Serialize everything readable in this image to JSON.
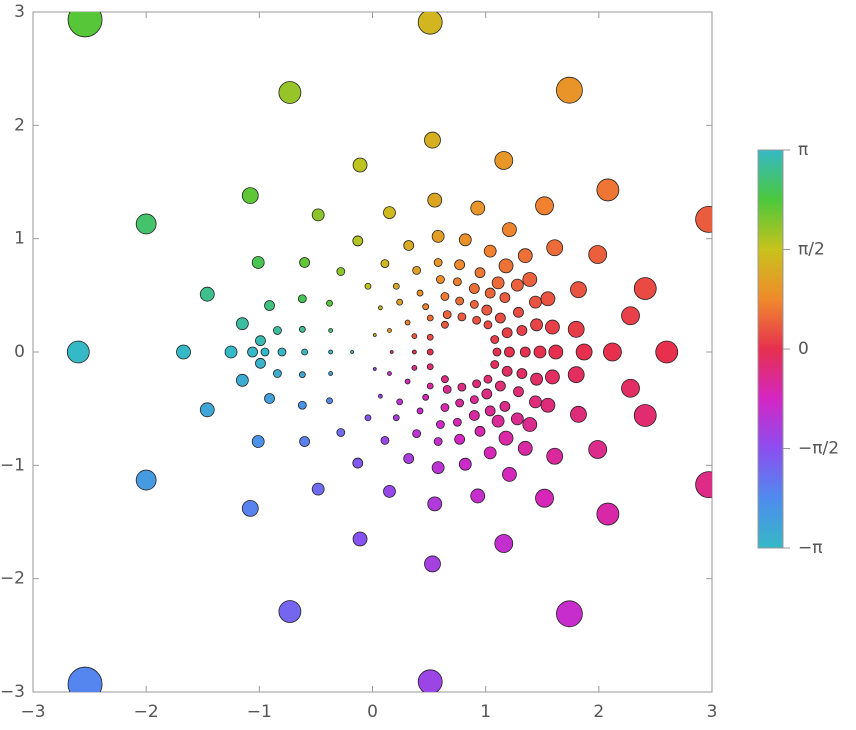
{
  "chart_data": {
    "type": "scatter",
    "x": [
      -2.54,
      0.51,
      1.74,
      -0.73,
      2.97,
      2.08,
      2.41,
      -2.0,
      -0.11,
      0.53,
      1.16,
      1.52,
      1.99,
      2.28,
      -1.08,
      -1.46,
      -0.48,
      0.15,
      0.55,
      0.93,
      1.21,
      1.35,
      1.61,
      1.82,
      1.8,
      -1.01,
      -0.6,
      -1.15,
      -0.91,
      -0.99,
      -0.84,
      -0.62,
      -0.62,
      -0.28,
      -0.13,
      0.11,
      0.32,
      0.58,
      0.82,
      1.04,
      1.18,
      1.39,
      1.55,
      1.59,
      -0.38,
      -0.37,
      -0.04,
      0.21,
      0.39,
      0.58,
      0.77,
      0.95,
      1.11,
      1.28,
      1.44,
      1.45,
      0.6,
      0.75,
      0.9,
      1.04,
      1.17,
      1.29,
      1.32,
      0.07,
      0.24,
      0.42,
      0.47,
      0.64,
      0.77,
      0.9,
      1.01,
      1.13,
      1.19,
      0.02,
      0.15,
      0.31,
      0.51,
      0.66,
      0.79,
      0.92,
      1.02,
      1.08,
      0.37,
      0.51,
      0.64,
      -2.54,
      0.51,
      1.74,
      -0.73,
      2.97,
      2.08,
      2.41,
      -2.0,
      -0.11,
      0.53,
      1.16,
      1.52,
      1.99,
      2.28,
      -1.08,
      -1.46,
      -0.48,
      0.15,
      0.55,
      0.93,
      1.21,
      1.35,
      1.61,
      1.82,
      1.8,
      -1.01,
      -0.6,
      -1.15,
      -0.91,
      -0.99,
      -0.84,
      -0.62,
      -0.62,
      -0.28,
      -0.13,
      0.11,
      0.32,
      0.58,
      0.82,
      1.04,
      1.18,
      1.39,
      1.55,
      1.59,
      -0.38,
      -0.37,
      -0.04,
      0.21,
      0.39,
      0.58,
      0.77,
      0.95,
      1.11,
      1.28,
      1.44,
      1.45,
      0.6,
      0.75,
      0.9,
      1.04,
      1.17,
      1.29,
      1.32,
      0.07,
      0.24,
      0.42,
      0.47,
      0.64,
      0.77,
      0.9,
      1.01,
      1.13,
      1.19,
      0.02,
      0.15,
      0.31,
      0.51,
      0.66,
      0.79,
      0.92,
      1.02,
      1.08,
      0.37,
      0.51,
      0.64,
      2.6,
      -2.6,
      2.12,
      1.87,
      -1.67,
      1.62,
      -1.25,
      1.48,
      -1.06,
      -0.95,
      -0.8,
      1.35,
      1.21,
      1.1,
      -0.6,
      -0.37,
      -0.18,
      0.51,
      0.37,
      0.17
    ],
    "y": [
      2.93,
      2.91,
      2.31,
      2.29,
      1.17,
      1.43,
      0.56,
      1.13,
      1.65,
      1.87,
      1.69,
      1.29,
      0.86,
      0.32,
      1.38,
      0.51,
      1.21,
      1.23,
      1.34,
      1.27,
      1.08,
      0.85,
      0.92,
      0.55,
      0.2,
      0.79,
      0.79,
      0.25,
      0.41,
      0.1,
      0.19,
      0.47,
      0.2,
      0.71,
      0.98,
      0.78,
      0.94,
      1.02,
      0.99,
      0.89,
      0.76,
      0.64,
      0.47,
      0.22,
      0.43,
      0.19,
      0.58,
      0.58,
      0.72,
      0.79,
      0.77,
      0.7,
      0.61,
      0.59,
      0.44,
      0.24,
      0.64,
      0.62,
      0.56,
      0.52,
      0.48,
      0.35,
      0.19,
      0.39,
      0.44,
      0.52,
      0.4,
      0.49,
      0.45,
      0.42,
      0.37,
      0.3,
      0.17,
      0.15,
      0.19,
      0.26,
      0.3,
      0.33,
      0.31,
      0.28,
      0.24,
      0.11,
      0.14,
      0.13,
      0.24,
      -2.93,
      -2.91,
      -2.31,
      -2.29,
      -1.17,
      -1.43,
      -0.56,
      -1.13,
      -1.65,
      -1.87,
      -1.69,
      -1.29,
      -0.86,
      -0.32,
      -1.38,
      -0.51,
      -1.21,
      -1.23,
      -1.34,
      -1.27,
      -1.08,
      -0.85,
      -0.92,
      -0.55,
      -0.2,
      -0.79,
      -0.79,
      -0.25,
      -0.41,
      -0.1,
      -0.19,
      -0.47,
      -0.2,
      -0.71,
      -0.98,
      -0.78,
      -0.94,
      -1.02,
      -0.99,
      -0.89,
      -0.76,
      -0.64,
      -0.47,
      -0.22,
      -0.43,
      -0.19,
      -0.58,
      -0.58,
      -0.72,
      -0.79,
      -0.77,
      -0.7,
      -0.61,
      -0.59,
      -0.44,
      -0.24,
      -0.64,
      -0.62,
      -0.56,
      -0.52,
      -0.48,
      -0.35,
      -0.19,
      -0.39,
      -0.44,
      -0.52,
      -0.4,
      -0.49,
      -0.45,
      -0.42,
      -0.37,
      -0.3,
      -0.17,
      -0.15,
      -0.19,
      -0.26,
      -0.3,
      -0.33,
      -0.31,
      -0.28,
      -0.24,
      -0.11,
      -0.14,
      -0.13,
      -0.24,
      0,
      0,
      0,
      0,
      0,
      0,
      0,
      0,
      0,
      0,
      0,
      0,
      0,
      0,
      0,
      0,
      0,
      0,
      0,
      0
    ],
    "sizes": [
      17,
      12,
      13,
      11,
      13,
      11,
      11,
      10,
      7,
      8,
      9,
      9,
      9,
      9,
      8,
      7,
      6,
      6,
      7,
      7,
      7,
      7,
      8,
      8,
      8,
      6,
      5,
      6,
      5,
      5,
      4,
      4,
      3,
      4,
      5,
      4,
      5,
      6,
      6,
      6,
      7,
      7,
      7,
      7,
      3,
      2,
      3,
      3,
      4,
      4,
      5,
      5,
      6,
      6,
      6,
      6,
      4,
      4,
      5,
      5,
      5,
      5,
      5,
      2,
      3,
      3,
      3,
      4,
      4,
      4,
      5,
      5,
      5,
      1.5,
      2,
      2.5,
      3,
      4,
      4,
      4,
      4,
      4,
      2.5,
      3,
      3.5,
      17,
      12,
      13,
      11,
      13,
      11,
      11,
      10,
      7,
      8,
      9,
      9,
      9,
      9,
      8,
      7,
      6,
      6,
      7,
      7,
      7,
      7,
      8,
      8,
      8,
      6,
      5,
      6,
      5,
      5,
      4,
      4,
      3,
      4,
      5,
      4,
      5,
      6,
      6,
      6,
      7,
      7,
      7,
      7,
      3,
      2,
      3,
      3,
      4,
      4,
      5,
      5,
      6,
      6,
      6,
      6,
      4,
      4,
      5,
      5,
      5,
      5,
      5,
      2,
      3,
      3,
      3,
      4,
      4,
      4,
      5,
      5,
      5,
      1.5,
      2,
      2.5,
      3,
      4,
      4,
      4,
      4,
      4,
      2.5,
      3,
      3.5,
      11,
      11,
      9,
      8,
      7,
      7,
      6,
      6,
      5,
      4,
      4,
      5,
      5,
      4,
      3,
      2,
      1.5,
      3,
      2,
      1.5
    ],
    "xlim": [
      -3,
      3
    ],
    "ylim": [
      -3,
      3
    ],
    "xticks": [
      {
        "value": -3,
        "label": "−3"
      },
      {
        "value": -2,
        "label": "−2"
      },
      {
        "value": -1,
        "label": "−1"
      },
      0,
      1,
      2,
      3
    ],
    "yticks": [
      {
        "value": -3,
        "label": "−3"
      },
      {
        "value": -2,
        "label": "−2"
      },
      {
        "value": -1,
        "label": "−1"
      },
      0,
      1,
      2,
      3
    ],
    "colorbar": {
      "lim": [
        -3.14159,
        3.14159
      ],
      "ticks": [
        {
          "value": -3.14159,
          "label": "−π"
        },
        {
          "value": -1.5708,
          "label": "−π/2"
        },
        0,
        {
          "value": 1.5708,
          "label": "π/2"
        },
        {
          "value": 3.14159,
          "label": "π"
        }
      ],
      "colors": [
        "#35b9c6",
        "#4f8bee",
        "#8c4ef0",
        "#d426c4",
        "#e6304e",
        "#f08a2c",
        "#c8c21c",
        "#4cc83c",
        "#35b9c6"
      ]
    }
  }
}
